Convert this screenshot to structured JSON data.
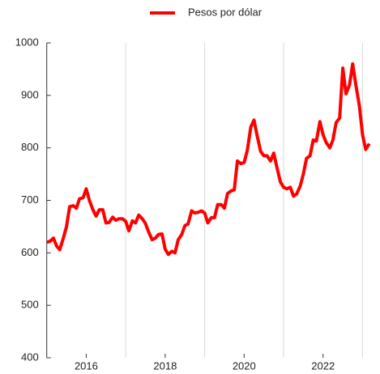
{
  "chart_data": {
    "type": "line",
    "x": [
      2015.0,
      2015.08,
      2015.17,
      2015.25,
      2015.33,
      2015.42,
      2015.5,
      2015.58,
      2015.67,
      2015.75,
      2015.83,
      2015.92,
      2016.0,
      2016.08,
      2016.17,
      2016.25,
      2016.33,
      2016.42,
      2016.5,
      2016.58,
      2016.67,
      2016.75,
      2016.83,
      2016.92,
      2017.0,
      2017.08,
      2017.17,
      2017.25,
      2017.33,
      2017.42,
      2017.5,
      2017.58,
      2017.67,
      2017.75,
      2017.83,
      2017.92,
      2018.0,
      2018.08,
      2018.17,
      2018.25,
      2018.33,
      2018.42,
      2018.5,
      2018.58,
      2018.67,
      2018.75,
      2018.83,
      2018.92,
      2019.0,
      2019.08,
      2019.17,
      2019.25,
      2019.33,
      2019.42,
      2019.5,
      2019.58,
      2019.67,
      2019.75,
      2019.83,
      2019.92,
      2020.0,
      2020.08,
      2020.17,
      2020.25,
      2020.33,
      2020.42,
      2020.5,
      2020.58,
      2020.67,
      2020.75,
      2020.83,
      2020.92,
      2021.0,
      2021.08,
      2021.17,
      2021.25,
      2021.33,
      2021.42,
      2021.5,
      2021.58,
      2021.67,
      2021.75,
      2021.83,
      2021.92,
      2022.0,
      2022.08,
      2022.17,
      2022.25,
      2022.33,
      2022.42,
      2022.5,
      2022.58,
      2022.67,
      2022.75,
      2022.83,
      2022.92,
      2023.0,
      2023.08,
      2023.17
    ],
    "series": [
      {
        "name": "Pesos por dólar",
        "color": "#ff0000",
        "values": [
          620,
          622,
          628,
          613,
          606,
          628,
          650,
          688,
          690,
          685,
          703,
          705,
          722,
          700,
          682,
          670,
          682,
          682,
          657,
          658,
          668,
          662,
          665,
          665,
          660,
          642,
          661,
          657,
          672,
          665,
          656,
          640,
          625,
          628,
          635,
          636,
          607,
          597,
          603,
          600,
          625,
          635,
          652,
          655,
          680,
          676,
          677,
          680,
          676,
          657,
          667,
          667,
          692,
          692,
          685,
          713,
          718,
          720,
          775,
          770,
          772,
          795,
          840,
          853,
          823,
          793,
          785,
          785,
          775,
          790,
          763,
          735,
          725,
          722,
          725,
          708,
          712,
          727,
          750,
          780,
          785,
          815,
          813,
          850,
          825,
          810,
          800,
          815,
          848,
          857,
          952,
          903,
          920,
          960,
          920,
          880,
          825,
          797,
          808
        ]
      }
    ],
    "xlim": [
      2015,
      2023.36
    ],
    "ylim": [
      400,
      1000
    ],
    "xticks": [
      2016,
      2018,
      2020,
      2022
    ],
    "xgrid": [
      2017,
      2019,
      2021,
      2023
    ],
    "yticks": [
      400,
      500,
      600,
      700,
      800,
      900,
      1000
    ],
    "legend": "top"
  }
}
